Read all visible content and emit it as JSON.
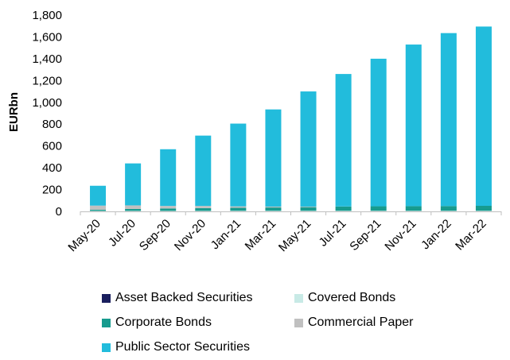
{
  "chart_data": {
    "type": "bar",
    "stacked": true,
    "title": "",
    "xlabel": "",
    "ylabel": "EURbn",
    "ylim": [
      0,
      1800
    ],
    "yticks": [
      0,
      200,
      400,
      600,
      800,
      1000,
      1200,
      1400,
      1600,
      1800
    ],
    "ytick_labels": [
      "0",
      "200",
      "400",
      "600",
      "800",
      "1,000",
      "1,200",
      "1,400",
      "1,600",
      "1,800"
    ],
    "grid": false,
    "legend_position": "bottom",
    "categories": [
      "May-20",
      "Jul-20",
      "Sep-20",
      "Nov-20",
      "Jan-21",
      "Mar-21",
      "May-21",
      "Jul-21",
      "Sep-21",
      "Nov-21",
      "Jan-22",
      "Mar-22"
    ],
    "series": [
      {
        "name": "Asset Backed Securities",
        "color": "#1a1f5e",
        "values": [
          1,
          1,
          1,
          1,
          1,
          1,
          1,
          1,
          1,
          1,
          1,
          1
        ]
      },
      {
        "name": "Covered Bonds",
        "color": "#c8eae6",
        "values": [
          4,
          4,
          4,
          4,
          5,
          5,
          5,
          5,
          5,
          5,
          5,
          5
        ]
      },
      {
        "name": "Corporate Bonds",
        "color": "#179b8e",
        "values": [
          10,
          17,
          22,
          25,
          27,
          30,
          33,
          38,
          41,
          42,
          43,
          45
        ]
      },
      {
        "name": "Commercial Paper",
        "color": "#c0c0c0",
        "values": [
          38,
          33,
          23,
          20,
          13,
          8,
          5,
          1,
          0,
          0,
          0,
          0
        ]
      },
      {
        "name": "Public Sector Securities",
        "color": "#22bcdc",
        "values": [
          182,
          385,
          520,
          645,
          759,
          891,
          1056,
          1215,
          1353,
          1482,
          1586,
          1644
        ]
      }
    ]
  }
}
